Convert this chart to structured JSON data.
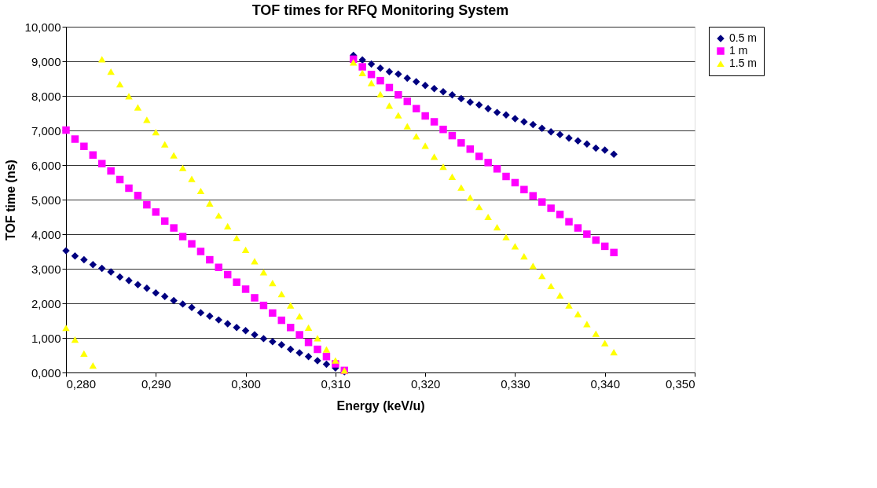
{
  "chart_data": {
    "type": "scatter",
    "title": "TOF times for RFQ Monitoring System",
    "xlabel": "Energy (keV/u)",
    "ylabel": "TOF time (ns)",
    "xlim": [
      0.28,
      0.35
    ],
    "xticks": [
      {
        "value": 0.28,
        "label": "0,280"
      },
      {
        "value": 0.29,
        "label": "0,290"
      },
      {
        "value": 0.3,
        "label": "0,300"
      },
      {
        "value": 0.31,
        "label": "0,310"
      },
      {
        "value": 0.32,
        "label": "0,320"
      },
      {
        "value": 0.33,
        "label": "0,330"
      },
      {
        "value": 0.34,
        "label": "0,340"
      },
      {
        "value": 0.35,
        "label": "0,350"
      }
    ],
    "ylim": [
      0,
      10
    ],
    "yticks": [
      {
        "value": 0,
        "label": "0,000"
      },
      {
        "value": 1,
        "label": "1,000"
      },
      {
        "value": 2,
        "label": "2,000"
      },
      {
        "value": 3,
        "label": "3,000"
      },
      {
        "value": 4,
        "label": "4,000"
      },
      {
        "value": 5,
        "label": "5,000"
      },
      {
        "value": 6,
        "label": "6,000"
      },
      {
        "value": 7,
        "label": "7,000"
      },
      {
        "value": 8,
        "label": "8,000"
      },
      {
        "value": 9,
        "label": "9,000"
      },
      {
        "value": 10,
        "label": "10,000"
      }
    ],
    "grid": "y",
    "legend": "right",
    "x": [
      0.28,
      0.281,
      0.282,
      0.283,
      0.284,
      0.285,
      0.286,
      0.287,
      0.288,
      0.289,
      0.29,
      0.291,
      0.292,
      0.293,
      0.294,
      0.295,
      0.296,
      0.297,
      0.298,
      0.299,
      0.3,
      0.301,
      0.302,
      0.303,
      0.304,
      0.305,
      0.306,
      0.307,
      0.308,
      0.309,
      0.31,
      0.311,
      0.312,
      0.313,
      0.314,
      0.315,
      0.316,
      0.317,
      0.318,
      0.319,
      0.32,
      0.321,
      0.322,
      0.323,
      0.324,
      0.325,
      0.326,
      0.327,
      0.328,
      0.329,
      0.33,
      0.331,
      0.332,
      0.333,
      0.334,
      0.335,
      0.336,
      0.337,
      0.338,
      0.339,
      0.34,
      0.341
    ],
    "series": [
      {
        "name": "0.5 m",
        "color": "#000080",
        "marker": "diamond",
        "values": [
          3.52,
          3.37,
          3.26,
          3.12,
          3.01,
          2.91,
          2.76,
          2.66,
          2.54,
          2.44,
          2.3,
          2.2,
          2.08,
          1.98,
          1.88,
          1.73,
          1.63,
          1.52,
          1.41,
          1.3,
          1.21,
          1.09,
          0.98,
          0.89,
          0.8,
          0.67,
          0.57,
          0.46,
          0.34,
          0.24,
          0.13,
          0.02,
          9.17,
          9.04,
          8.92,
          8.8,
          8.7,
          8.63,
          8.51,
          8.41,
          8.3,
          8.21,
          8.12,
          8.03,
          7.92,
          7.82,
          7.74,
          7.63,
          7.52,
          7.45,
          7.34,
          7.25,
          7.17,
          7.06,
          6.96,
          6.88,
          6.78,
          6.7,
          6.61,
          6.49,
          6.43,
          6.31
        ]
      },
      {
        "name": "1 m",
        "color": "#ff00ff",
        "marker": "square",
        "values": [
          7.01,
          6.75,
          6.54,
          6.29,
          6.04,
          5.83,
          5.58,
          5.33,
          5.12,
          4.85,
          4.64,
          4.38,
          4.18,
          3.93,
          3.72,
          3.5,
          3.26,
          3.04,
          2.83,
          2.61,
          2.41,
          2.16,
          1.94,
          1.72,
          1.51,
          1.3,
          1.09,
          0.87,
          0.67,
          0.46,
          0.25,
          0.06,
          9.06,
          8.84,
          8.62,
          8.44,
          8.24,
          8.03,
          7.84,
          7.63,
          7.42,
          7.25,
          7.03,
          6.85,
          6.64,
          6.46,
          6.25,
          6.07,
          5.89,
          5.67,
          5.49,
          5.29,
          5.11,
          4.93,
          4.75,
          4.57,
          4.36,
          4.18,
          4.0,
          3.83,
          3.65,
          3.47
        ]
      },
      {
        "name": "1.5 m",
        "color": "#ffff00",
        "marker": "triangle",
        "values": [
          1.29,
          0.95,
          0.55,
          0.2,
          9.06,
          8.7,
          8.34,
          7.99,
          7.67,
          7.31,
          6.95,
          6.6,
          6.28,
          5.92,
          5.6,
          5.25,
          4.89,
          4.54,
          4.23,
          3.89,
          3.55,
          3.22,
          2.9,
          2.59,
          2.27,
          1.94,
          1.63,
          1.3,
          0.99,
          0.67,
          0.35,
          0.06,
          8.97,
          8.66,
          8.37,
          8.05,
          7.72,
          7.44,
          7.12,
          6.83,
          6.56,
          6.24,
          5.95,
          5.66,
          5.35,
          5.06,
          4.79,
          4.5,
          4.2,
          3.92,
          3.65,
          3.36,
          3.08,
          2.79,
          2.5,
          2.23,
          1.94,
          1.69,
          1.4,
          1.12,
          0.85,
          0.59
        ]
      }
    ]
  }
}
